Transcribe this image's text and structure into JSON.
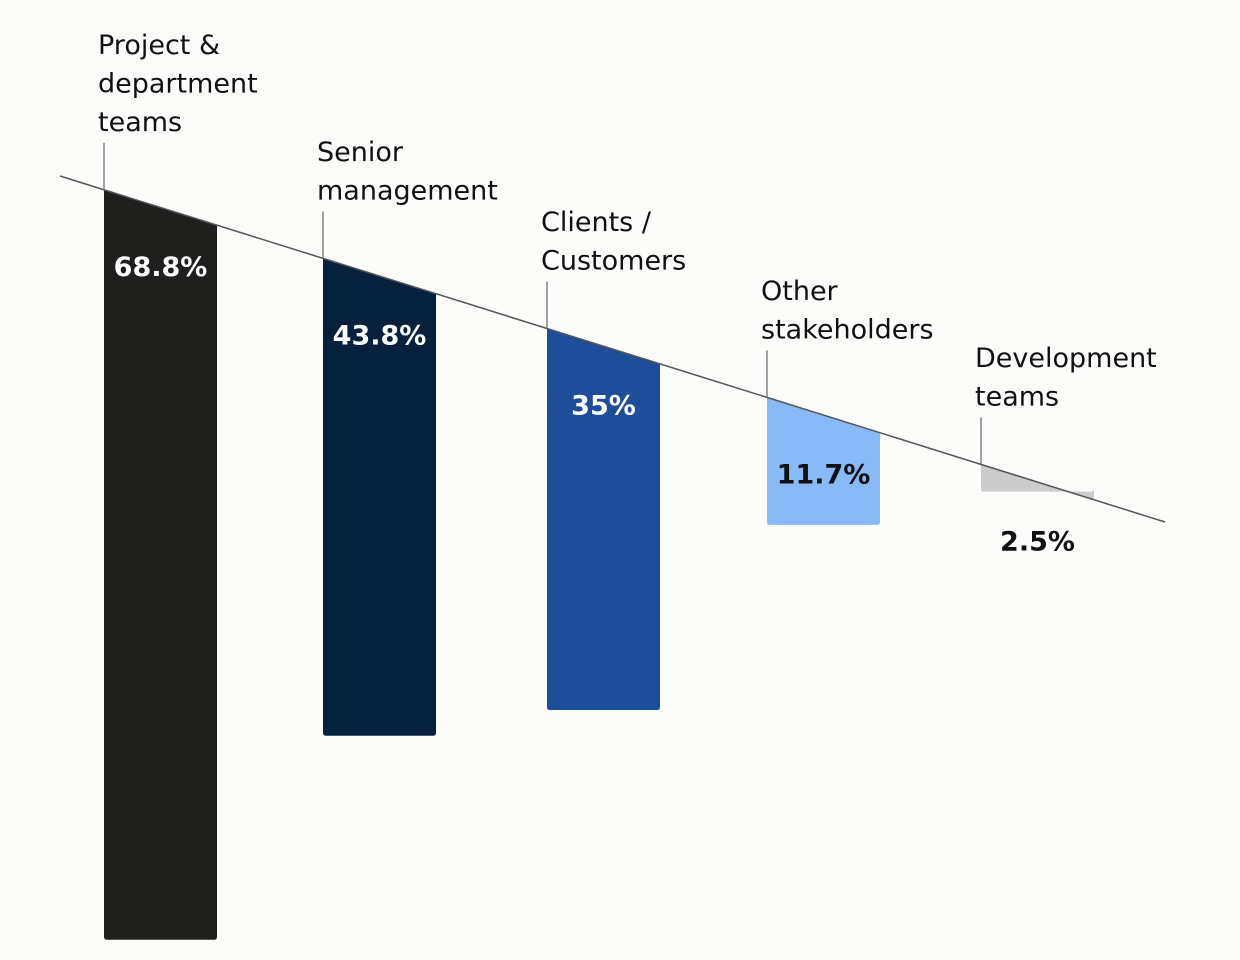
{
  "chart_data": {
    "type": "bar",
    "categories": [
      [
        "Project &",
        "department",
        "teams"
      ],
      [
        "Senior",
        "management"
      ],
      [
        "Clients /",
        "Customers"
      ],
      [
        "Other",
        "stakeholders"
      ],
      [
        "Development",
        "teams"
      ]
    ],
    "values": [
      68.8,
      43.8,
      35,
      11.7,
      2.5
    ],
    "value_labels": [
      "68.8%",
      "43.8%",
      "35%",
      "11.7%",
      "2.5%"
    ],
    "colors": [
      "#1f201e",
      "#05213d",
      "#1e4d9a",
      "#88b9f9",
      "#cbcccb"
    ],
    "label_colors": [
      "#ffffff",
      "#ffffff",
      "#ffffff",
      "#111111",
      "#111111"
    ],
    "ylim": [
      0,
      70
    ]
  }
}
